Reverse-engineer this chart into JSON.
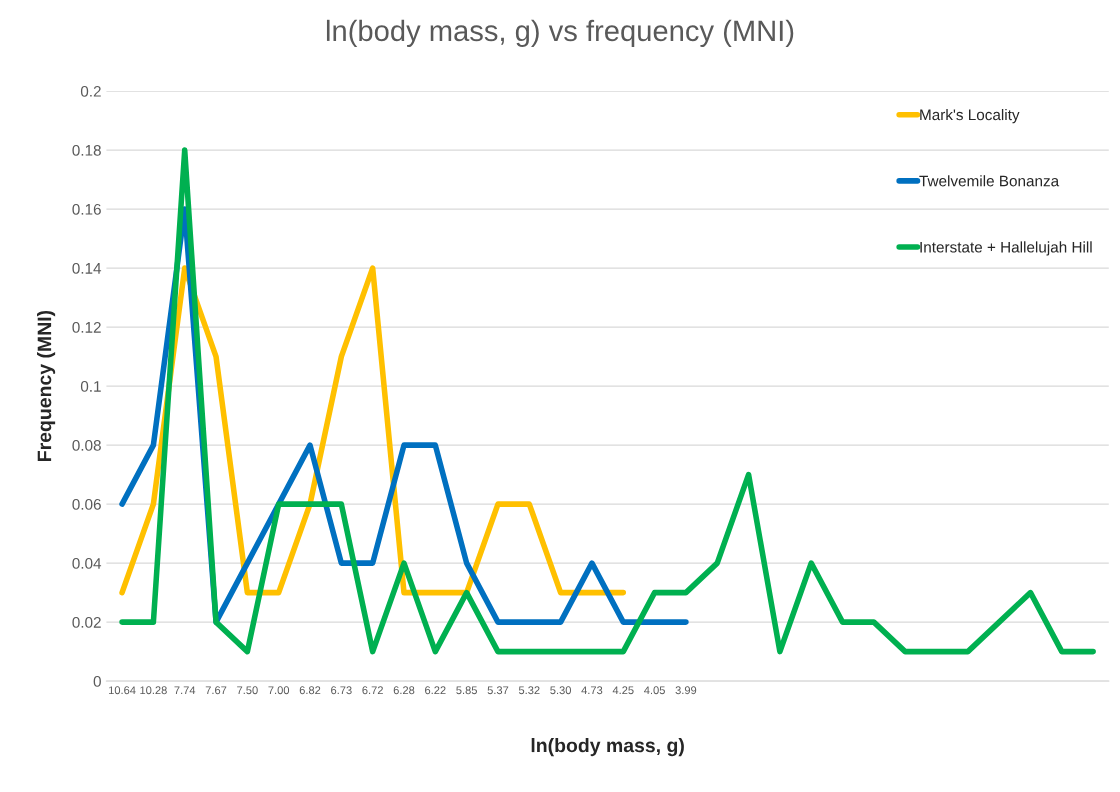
{
  "chart_data": {
    "type": "line",
    "title": "ln(body mass, g) vs frequency (MNI)",
    "xlabel": "ln(body mass, g)",
    "ylabel": "Frequency (MNI)",
    "categories": [
      "10.64",
      "10.28",
      "7.74",
      "7.67",
      "7.50",
      "7.00",
      "6.82",
      "6.73",
      "6.72",
      "6.28",
      "6.22",
      "5.85",
      "5.37",
      "5.32",
      "5.30",
      "4.73",
      "4.25",
      "4.05",
      "3.99",
      null,
      null,
      null,
      null,
      null,
      null,
      null,
      null,
      null,
      null,
      null,
      null,
      null
    ],
    "series": [
      {
        "name": "Mark's Locality",
        "color": "#ffc000",
        "values": [
          0.03,
          0.06,
          0.14,
          0.11,
          0.03,
          0.03,
          0.06,
          0.11,
          0.14,
          0.03,
          0.03,
          0.03,
          0.06,
          0.06,
          0.03,
          0.03,
          0.03,
          null,
          null,
          null,
          null,
          null,
          null,
          null,
          null,
          null,
          null,
          null,
          null,
          null,
          null,
          null
        ]
      },
      {
        "name": "Twelvemile Bonanza",
        "color": "#0070c0",
        "values": [
          0.06,
          0.08,
          0.16,
          0.02,
          0.04,
          0.06,
          0.08,
          0.04,
          0.04,
          0.08,
          0.08,
          0.04,
          0.02,
          0.02,
          0.02,
          0.04,
          0.02,
          0.02,
          0.02,
          null,
          null,
          null,
          null,
          null,
          null,
          null,
          null,
          null,
          null,
          null,
          null,
          null
        ]
      },
      {
        "name": "Interstate + Hallelujah Hill",
        "color": "#00b050",
        "values": [
          0.02,
          0.02,
          0.18,
          0.02,
          0.01,
          0.06,
          0.06,
          0.06,
          0.01,
          0.04,
          0.01,
          0.03,
          0.01,
          0.01,
          0.01,
          0.01,
          0.01,
          0.03,
          0.03,
          0.04,
          0.07,
          0.01,
          0.04,
          0.02,
          0.02,
          0.01,
          0.01,
          0.01,
          0.02,
          0.03,
          0.01,
          0.01
        ]
      }
    ],
    "ylim": [
      0,
      0.2
    ],
    "yticks": [
      0,
      0.02,
      0.04,
      0.06,
      0.08,
      0.1,
      0.12,
      0.14,
      0.16,
      0.18,
      0.2
    ],
    "grid": "y",
    "legend": "top right",
    "marker": "none",
    "line_style": "solid"
  }
}
